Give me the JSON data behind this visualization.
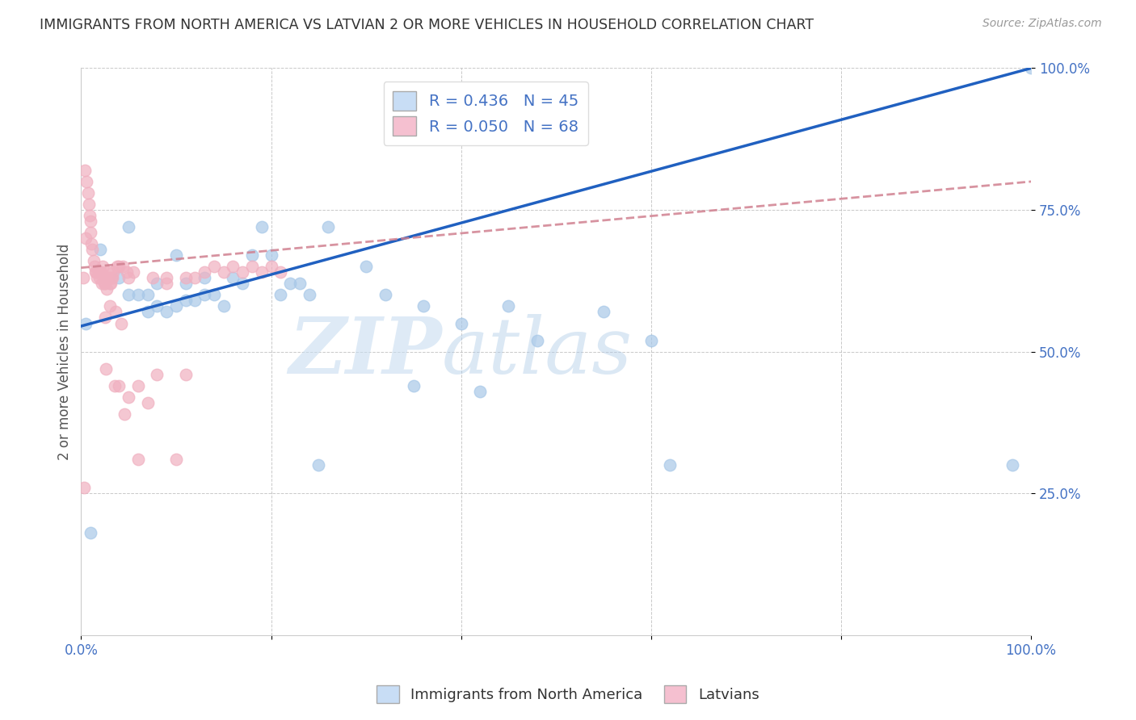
{
  "title": "IMMIGRANTS FROM NORTH AMERICA VS LATVIAN 2 OR MORE VEHICLES IN HOUSEHOLD CORRELATION CHART",
  "source": "Source: ZipAtlas.com",
  "ylabel": "2 or more Vehicles in Household",
  "xlabel_blue": "Immigrants from North America",
  "xlabel_pink": "Latvians",
  "blue_R": 0.436,
  "blue_N": 45,
  "pink_R": 0.05,
  "pink_N": 68,
  "blue_color": "#a8c8e8",
  "pink_color": "#f0b0c0",
  "blue_line_color": "#2060c0",
  "pink_line_color": "#d08090",
  "background_color": "#ffffff",
  "watermark_zip": "ZIP",
  "watermark_atlas": "atlas",
  "xlim": [
    0.0,
    1.0
  ],
  "ylim": [
    0.0,
    1.0
  ],
  "blue_scatter_x": [
    0.005,
    0.01,
    0.02,
    0.04,
    0.05,
    0.05,
    0.06,
    0.07,
    0.07,
    0.08,
    0.08,
    0.09,
    0.1,
    0.1,
    0.11,
    0.11,
    0.12,
    0.13,
    0.13,
    0.14,
    0.15,
    0.16,
    0.17,
    0.18,
    0.19,
    0.2,
    0.21,
    0.22,
    0.23,
    0.24,
    0.25,
    0.26,
    0.3,
    0.32,
    0.35,
    0.36,
    0.4,
    0.42,
    0.45,
    0.48,
    0.55,
    0.6,
    0.62,
    0.98,
    1.0
  ],
  "blue_scatter_y": [
    0.55,
    0.18,
    0.68,
    0.63,
    0.6,
    0.72,
    0.6,
    0.6,
    0.57,
    0.62,
    0.58,
    0.57,
    0.67,
    0.58,
    0.59,
    0.62,
    0.59,
    0.6,
    0.63,
    0.6,
    0.58,
    0.63,
    0.62,
    0.67,
    0.72,
    0.67,
    0.6,
    0.62,
    0.62,
    0.6,
    0.3,
    0.72,
    0.65,
    0.6,
    0.44,
    0.58,
    0.55,
    0.43,
    0.58,
    0.52,
    0.57,
    0.52,
    0.3,
    0.3,
    1.0
  ],
  "pink_scatter_x": [
    0.002,
    0.003,
    0.004,
    0.005,
    0.006,
    0.007,
    0.008,
    0.009,
    0.01,
    0.01,
    0.011,
    0.012,
    0.013,
    0.014,
    0.015,
    0.016,
    0.017,
    0.018,
    0.019,
    0.02,
    0.021,
    0.022,
    0.023,
    0.024,
    0.025,
    0.026,
    0.027,
    0.028,
    0.029,
    0.03,
    0.031,
    0.032,
    0.033,
    0.034,
    0.035,
    0.036,
    0.038,
    0.04,
    0.042,
    0.044,
    0.046,
    0.048,
    0.05,
    0.055,
    0.06,
    0.07,
    0.08,
    0.09,
    0.1,
    0.11,
    0.12,
    0.13,
    0.14,
    0.15,
    0.16,
    0.17,
    0.18,
    0.19,
    0.2,
    0.21,
    0.025,
    0.03,
    0.04,
    0.05,
    0.06,
    0.075,
    0.09,
    0.11
  ],
  "pink_scatter_y": [
    0.63,
    0.26,
    0.82,
    0.7,
    0.8,
    0.78,
    0.76,
    0.74,
    0.73,
    0.71,
    0.69,
    0.68,
    0.66,
    0.65,
    0.64,
    0.64,
    0.63,
    0.64,
    0.63,
    0.64,
    0.64,
    0.62,
    0.65,
    0.62,
    0.62,
    0.47,
    0.61,
    0.64,
    0.63,
    0.62,
    0.62,
    0.63,
    0.63,
    0.64,
    0.44,
    0.57,
    0.65,
    0.65,
    0.55,
    0.65,
    0.39,
    0.64,
    0.63,
    0.64,
    0.31,
    0.41,
    0.46,
    0.63,
    0.31,
    0.46,
    0.63,
    0.64,
    0.65,
    0.64,
    0.65,
    0.64,
    0.65,
    0.64,
    0.65,
    0.64,
    0.56,
    0.58,
    0.44,
    0.42,
    0.44,
    0.63,
    0.62,
    0.63
  ],
  "blue_line_x0": 0.0,
  "blue_line_y0": 0.545,
  "blue_line_x1": 1.0,
  "blue_line_y1": 1.0,
  "pink_line_x0": 0.0,
  "pink_line_y0": 0.648,
  "pink_line_x1": 1.0,
  "pink_line_y1": 0.8
}
